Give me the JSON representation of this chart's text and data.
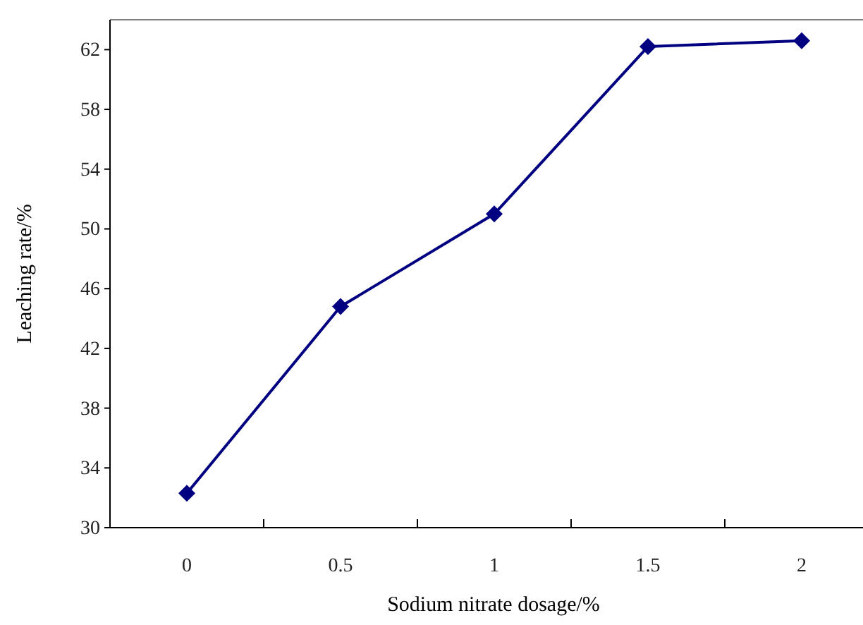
{
  "chart_data": {
    "type": "line",
    "xlabel": "Sodium nitrate dosage/%",
    "ylabel": "Leaching rate/%",
    "categories": [
      "0",
      "0.5",
      "1",
      "1.5",
      "2"
    ],
    "series": [
      {
        "color": "#000080",
        "values": [
          32.3,
          44.8,
          51.0,
          62.2,
          62.6
        ]
      }
    ],
    "ylim": [
      30,
      64
    ],
    "yticks": [
      30,
      34,
      38,
      42,
      46,
      50,
      54,
      58,
      62
    ],
    "grid": false,
    "marker": "diamond",
    "line_style": "solid"
  }
}
